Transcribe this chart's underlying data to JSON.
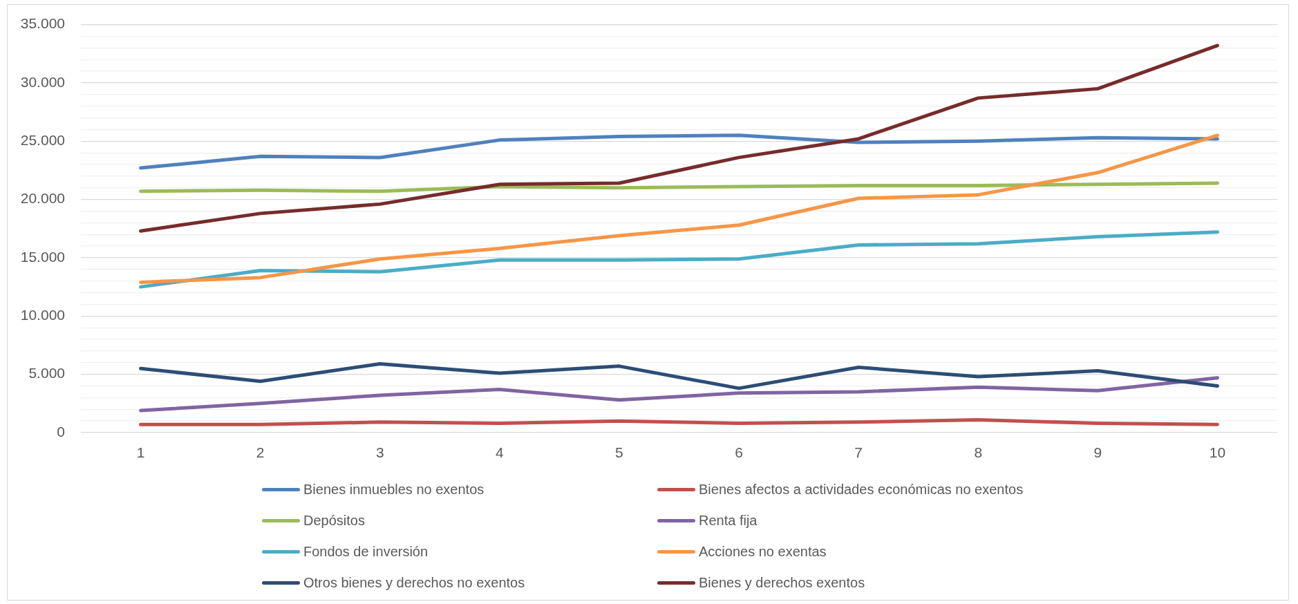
{
  "chart_data": {
    "type": "line",
    "categories": [
      "1",
      "2",
      "3",
      "4",
      "5",
      "6",
      "7",
      "8",
      "9",
      "10"
    ],
    "series": [
      {
        "name": "Bienes inmuebles no exentos",
        "color": "#4f81bd",
        "values": [
          22700,
          23700,
          23600,
          25100,
          25400,
          25500,
          24900,
          25000,
          25300,
          25200
        ]
      },
      {
        "name": "Bienes afectos a actividades económicas no exentos",
        "color": "#c0504d",
        "values": [
          700,
          700,
          900,
          800,
          1000,
          800,
          900,
          1100,
          800,
          700
        ]
      },
      {
        "name": "Depósitos",
        "color": "#9bbb59",
        "values": [
          20700,
          20800,
          20700,
          21100,
          21000,
          21100,
          21200,
          21200,
          21300,
          21400
        ]
      },
      {
        "name": "Renta fija",
        "color": "#8064a2",
        "values": [
          1900,
          2500,
          3200,
          3700,
          2800,
          3400,
          3500,
          3900,
          3600,
          4700
        ]
      },
      {
        "name": "Fondos de inversión",
        "color": "#4bacc6",
        "values": [
          12500,
          13900,
          13800,
          14800,
          14800,
          14900,
          16100,
          16200,
          16800,
          17200
        ]
      },
      {
        "name": "Acciones no exentas",
        "color": "#f79646",
        "values": [
          12900,
          13300,
          14900,
          15800,
          16900,
          17800,
          20100,
          20400,
          22300,
          25500
        ]
      },
      {
        "name": "Otros bienes y derechos no exentos",
        "color": "#2c4d75",
        "values": [
          5500,
          4400,
          5900,
          5100,
          5700,
          3800,
          5600,
          4800,
          5300,
          4000
        ]
      },
      {
        "name": "Bienes y derechos exentos",
        "color": "#772c2a",
        "values": [
          17300,
          18800,
          19600,
          21300,
          21400,
          23600,
          25200,
          28700,
          29500,
          33200
        ]
      }
    ],
    "ylim": [
      0,
      35000
    ],
    "yticks": [
      0,
      {
        "value": 1000,
        "label": null
      },
      {
        "value": 2000,
        "label": null
      },
      {
        "value": 3000,
        "label": null
      },
      {
        "value": 4000,
        "label": null
      },
      {
        "value": 5000,
        "label": "5.000"
      },
      {
        "value": 6000,
        "label": null
      },
      {
        "value": 7000,
        "label": null
      },
      {
        "value": 8000,
        "label": null
      },
      {
        "value": 9000,
        "label": null
      },
      {
        "value": 10000,
        "label": "10.000"
      },
      {
        "value": 11000,
        "label": null
      },
      {
        "value": 12000,
        "label": null
      },
      {
        "value": 13000,
        "label": null
      },
      {
        "value": 14000,
        "label": null
      },
      {
        "value": 15000,
        "label": "15.000"
      },
      {
        "value": 16000,
        "label": null
      },
      {
        "value": 17000,
        "label": null
      },
      {
        "value": 18000,
        "label": null
      },
      {
        "value": 19000,
        "label": null
      },
      {
        "value": 20000,
        "label": "20.000"
      },
      {
        "value": 21000,
        "label": null
      },
      {
        "value": 22000,
        "label": null
      },
      {
        "value": 23000,
        "label": null
      },
      {
        "value": 24000,
        "label": null
      },
      {
        "value": 25000,
        "label": "25.000"
      },
      {
        "value": 26000,
        "label": null
      },
      {
        "value": 27000,
        "label": null
      },
      {
        "value": 28000,
        "label": null
      },
      {
        "value": 29000,
        "label": null
      },
      {
        "value": 30000,
        "label": "30.000"
      },
      {
        "value": 31000,
        "label": null
      },
      {
        "value": 32000,
        "label": null
      },
      {
        "value": 33000,
        "label": null
      },
      {
        "value": 34000,
        "label": null
      },
      {
        "value": 35000,
        "label": "35.000"
      }
    ],
    "grid": "y",
    "legend": "bottom",
    "marker": "none",
    "line_style": "solid"
  }
}
